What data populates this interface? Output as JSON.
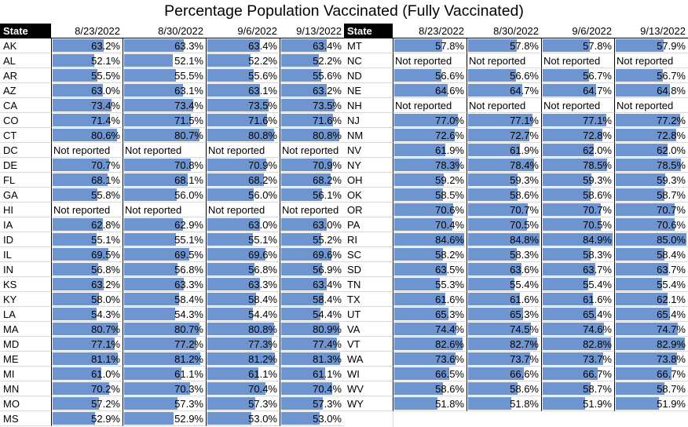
{
  "chart_data": {
    "type": "table",
    "title": "Percentage Population Vaccinated (Fully Vaccinated)",
    "state_header": "State",
    "dates": [
      "8/23/2022",
      "8/30/2022",
      "9/6/2022",
      "9/13/2022"
    ],
    "not_reported_label": "Not reported",
    "bar_color": "#6f95d0",
    "bar_scale": [
      0,
      87
    ],
    "left_rows": [
      {
        "state": "AK",
        "values": [
          63.2,
          63.3,
          63.4,
          63.4
        ]
      },
      {
        "state": "AL",
        "values": [
          52.1,
          52.1,
          52.2,
          52.2
        ]
      },
      {
        "state": "AR",
        "values": [
          55.5,
          55.5,
          55.6,
          55.6
        ]
      },
      {
        "state": "AZ",
        "values": [
          63.0,
          63.1,
          63.1,
          63.2
        ]
      },
      {
        "state": "CA",
        "values": [
          73.4,
          73.4,
          73.5,
          73.5
        ]
      },
      {
        "state": "CO",
        "values": [
          71.4,
          71.5,
          71.6,
          71.6
        ]
      },
      {
        "state": "CT",
        "values": [
          80.6,
          80.7,
          80.8,
          80.8
        ]
      },
      {
        "state": "DC",
        "values": [
          null,
          null,
          null,
          null
        ]
      },
      {
        "state": "DE",
        "values": [
          70.7,
          70.8,
          70.9,
          70.9
        ]
      },
      {
        "state": "FL",
        "values": [
          68.1,
          68.1,
          68.2,
          68.2
        ]
      },
      {
        "state": "GA",
        "values": [
          55.8,
          56.0,
          56.0,
          56.1
        ]
      },
      {
        "state": "HI",
        "values": [
          null,
          null,
          null,
          null
        ]
      },
      {
        "state": "IA",
        "values": [
          62.8,
          62.9,
          63.0,
          63.0
        ]
      },
      {
        "state": "ID",
        "values": [
          55.1,
          55.1,
          55.1,
          55.2
        ]
      },
      {
        "state": "IL",
        "values": [
          69.5,
          69.5,
          69.6,
          69.6
        ]
      },
      {
        "state": "IN",
        "values": [
          56.8,
          56.8,
          56.8,
          56.9
        ]
      },
      {
        "state": "KS",
        "values": [
          63.2,
          63.3,
          63.3,
          63.4
        ]
      },
      {
        "state": "KY",
        "values": [
          58.0,
          58.4,
          58.4,
          58.4
        ]
      },
      {
        "state": "LA",
        "values": [
          54.3,
          54.3,
          54.4,
          54.4
        ]
      },
      {
        "state": "MA",
        "values": [
          80.7,
          80.7,
          80.8,
          80.9
        ]
      },
      {
        "state": "MD",
        "values": [
          77.1,
          77.2,
          77.3,
          77.4
        ]
      },
      {
        "state": "ME",
        "values": [
          81.1,
          81.2,
          81.2,
          81.3
        ]
      },
      {
        "state": "MI",
        "values": [
          61.0,
          61.1,
          61.1,
          61.1
        ]
      },
      {
        "state": "MN",
        "values": [
          70.2,
          70.3,
          70.4,
          70.4
        ]
      },
      {
        "state": "MO",
        "values": [
          57.2,
          57.3,
          57.3,
          57.3
        ]
      },
      {
        "state": "MS",
        "values": [
          52.9,
          52.9,
          53.0,
          53.0
        ]
      }
    ],
    "right_rows": [
      {
        "state": "MT",
        "values": [
          57.8,
          57.8,
          57.8,
          57.9
        ]
      },
      {
        "state": "NC",
        "values": [
          null,
          null,
          null,
          null
        ]
      },
      {
        "state": "ND",
        "values": [
          56.6,
          56.6,
          56.7,
          56.7
        ]
      },
      {
        "state": "NE",
        "values": [
          64.6,
          64.7,
          64.7,
          64.8
        ]
      },
      {
        "state": "NH",
        "values": [
          null,
          null,
          null,
          null
        ]
      },
      {
        "state": "NJ",
        "values": [
          77.0,
          77.1,
          77.1,
          77.2
        ]
      },
      {
        "state": "NM",
        "values": [
          72.6,
          72.7,
          72.8,
          72.8
        ]
      },
      {
        "state": "NV",
        "values": [
          61.9,
          61.9,
          62.0,
          62.0
        ]
      },
      {
        "state": "NY",
        "values": [
          78.3,
          78.4,
          78.5,
          78.5
        ]
      },
      {
        "state": "OH",
        "values": [
          59.2,
          59.3,
          59.3,
          59.3
        ]
      },
      {
        "state": "OK",
        "values": [
          58.5,
          58.6,
          58.6,
          58.7
        ]
      },
      {
        "state": "OR",
        "values": [
          70.6,
          70.7,
          70.7,
          70.7
        ]
      },
      {
        "state": "PA",
        "values": [
          70.4,
          70.5,
          70.5,
          70.6
        ]
      },
      {
        "state": "RI",
        "values": [
          84.6,
          84.8,
          84.9,
          85.0
        ]
      },
      {
        "state": "SC",
        "values": [
          58.2,
          58.3,
          58.3,
          58.4
        ]
      },
      {
        "state": "SD",
        "values": [
          63.5,
          63.6,
          63.7,
          63.7
        ]
      },
      {
        "state": "TN",
        "values": [
          55.3,
          55.4,
          55.4,
          55.4
        ]
      },
      {
        "state": "TX",
        "values": [
          61.6,
          61.6,
          61.6,
          62.1
        ]
      },
      {
        "state": "UT",
        "values": [
          65.3,
          65.3,
          65.4,
          65.4
        ]
      },
      {
        "state": "VA",
        "values": [
          74.4,
          74.5,
          74.6,
          74.7
        ]
      },
      {
        "state": "VT",
        "values": [
          82.6,
          82.7,
          82.8,
          82.9
        ]
      },
      {
        "state": "WA",
        "values": [
          73.6,
          73.7,
          73.7,
          73.8
        ]
      },
      {
        "state": "WI",
        "values": [
          66.5,
          66.6,
          66.7,
          66.7
        ]
      },
      {
        "state": "WV",
        "values": [
          58.6,
          58.6,
          58.7,
          58.7
        ]
      },
      {
        "state": "WY",
        "values": [
          51.8,
          51.8,
          51.9,
          51.9
        ]
      }
    ]
  }
}
